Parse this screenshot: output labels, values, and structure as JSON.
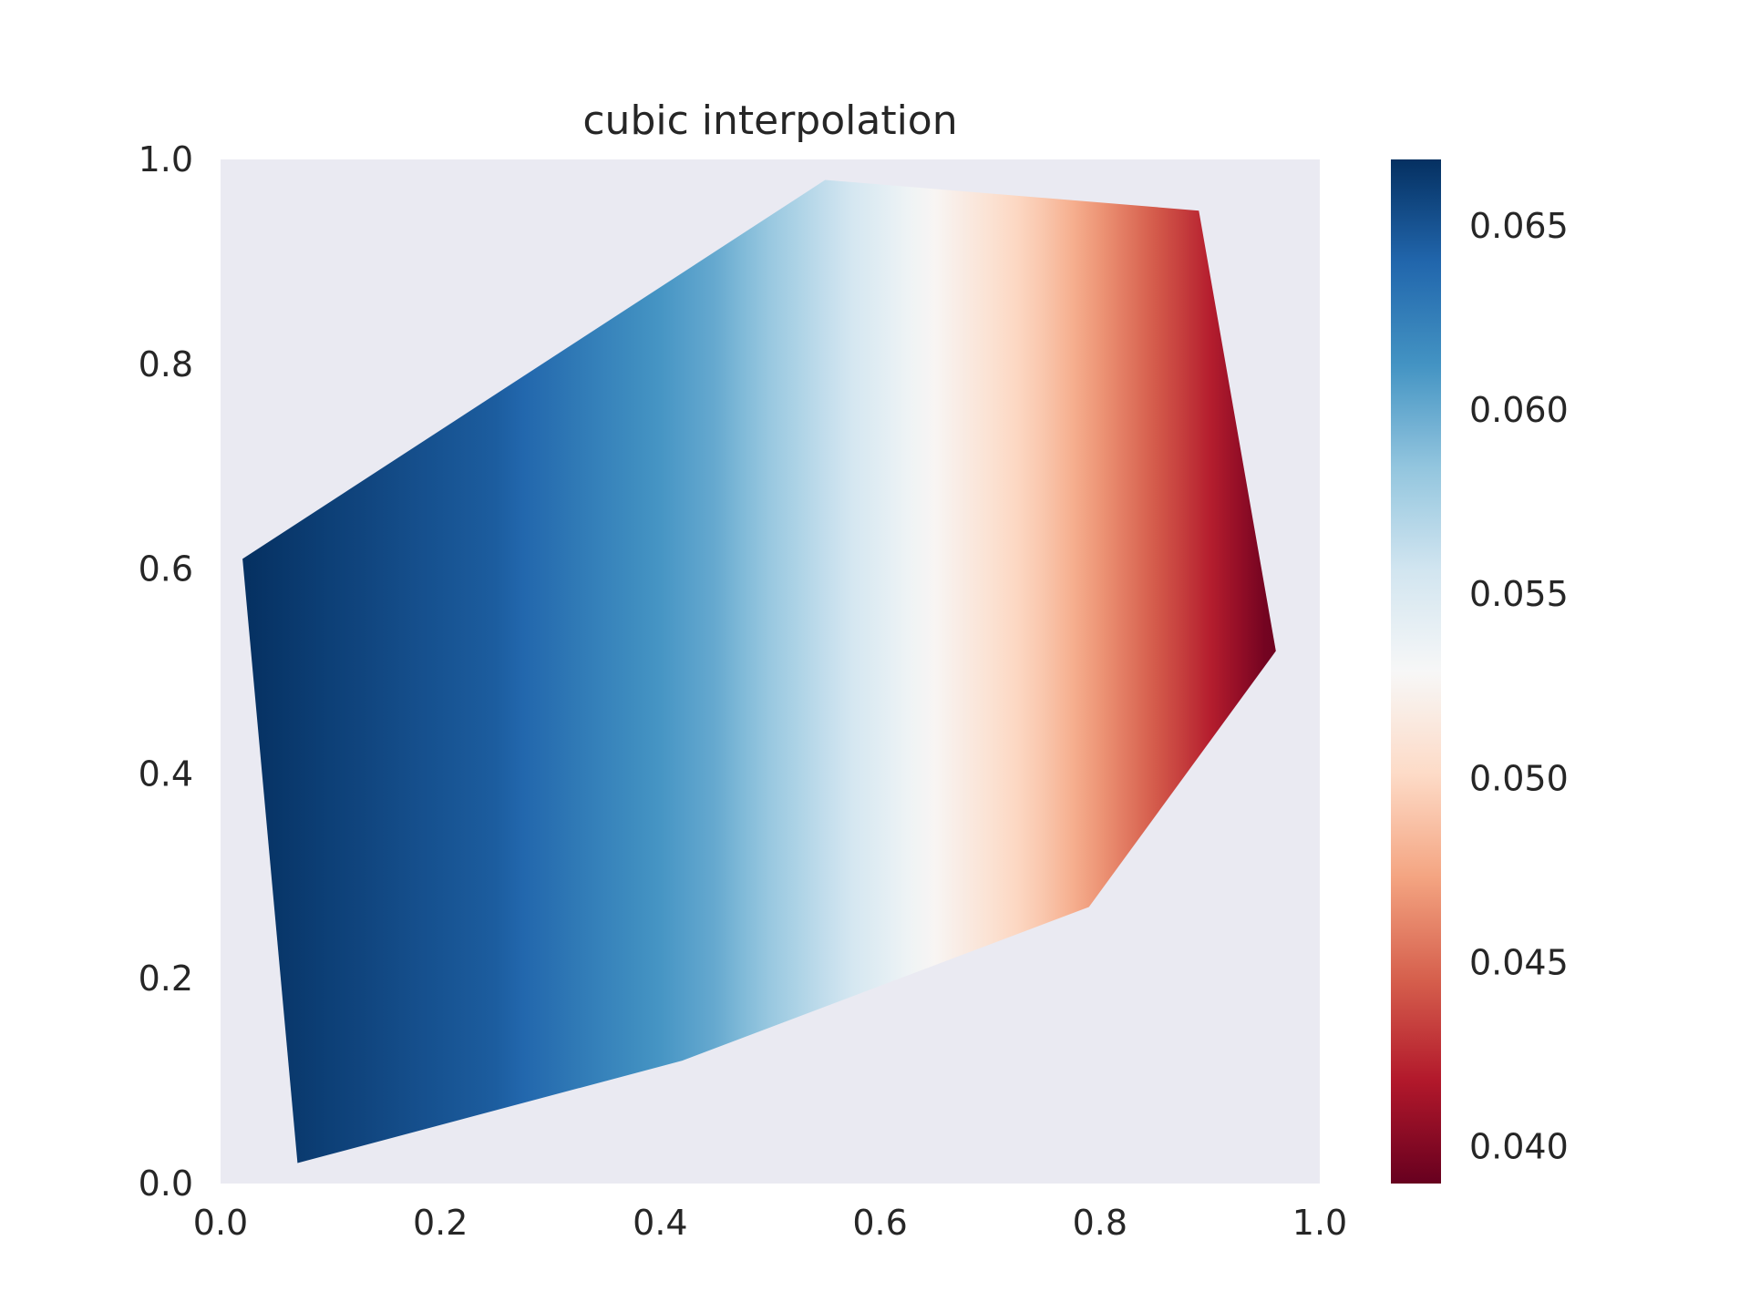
{
  "chart_data": {
    "type": "heatmap",
    "title": "cubic interpolation",
    "xlabel": "",
    "ylabel": "",
    "xlim": [
      0.0,
      1.0
    ],
    "ylim": [
      0.0,
      1.0
    ],
    "x_ticks": [
      "0.0",
      "0.2",
      "0.4",
      "0.6",
      "0.8",
      "1.0"
    ],
    "y_ticks": [
      "0.0",
      "0.2",
      "0.4",
      "0.6",
      "0.8",
      "1.0"
    ],
    "grid": false,
    "colormap": "RdBu",
    "background_color": "#eaeaf2",
    "colorbar": {
      "range": [
        0.039,
        0.0668
      ],
      "ticks": [
        "0.040",
        "0.045",
        "0.050",
        "0.055",
        "0.060",
        "0.065"
      ],
      "tick_values": [
        0.04,
        0.045,
        0.05,
        0.055,
        0.06,
        0.065
      ]
    },
    "hull_vertices": [
      {
        "x": 0.02,
        "y": 0.61
      },
      {
        "x": 0.55,
        "y": 0.98
      },
      {
        "x": 0.89,
        "y": 0.95
      },
      {
        "x": 0.96,
        "y": 0.52
      },
      {
        "x": 0.79,
        "y": 0.27
      },
      {
        "x": 0.42,
        "y": 0.12
      },
      {
        "x": 0.07,
        "y": 0.02
      }
    ],
    "value_profile": [
      {
        "x": 0.02,
        "value": 0.0668
      },
      {
        "x": 0.25,
        "value": 0.0645
      },
      {
        "x": 0.45,
        "value": 0.06
      },
      {
        "x": 0.6,
        "value": 0.0545
      },
      {
        "x": 0.75,
        "value": 0.049
      },
      {
        "x": 0.88,
        "value": 0.043
      },
      {
        "x": 0.96,
        "value": 0.039
      }
    ],
    "colors": {
      "min": "#67001f",
      "max": "#053061",
      "stops": [
        "#67001f",
        "#b2182b",
        "#d6604d",
        "#f4a582",
        "#fddbc7",
        "#f7f7f7",
        "#d1e5f0",
        "#92c5de",
        "#4393c3",
        "#2166ac",
        "#053061"
      ]
    }
  }
}
